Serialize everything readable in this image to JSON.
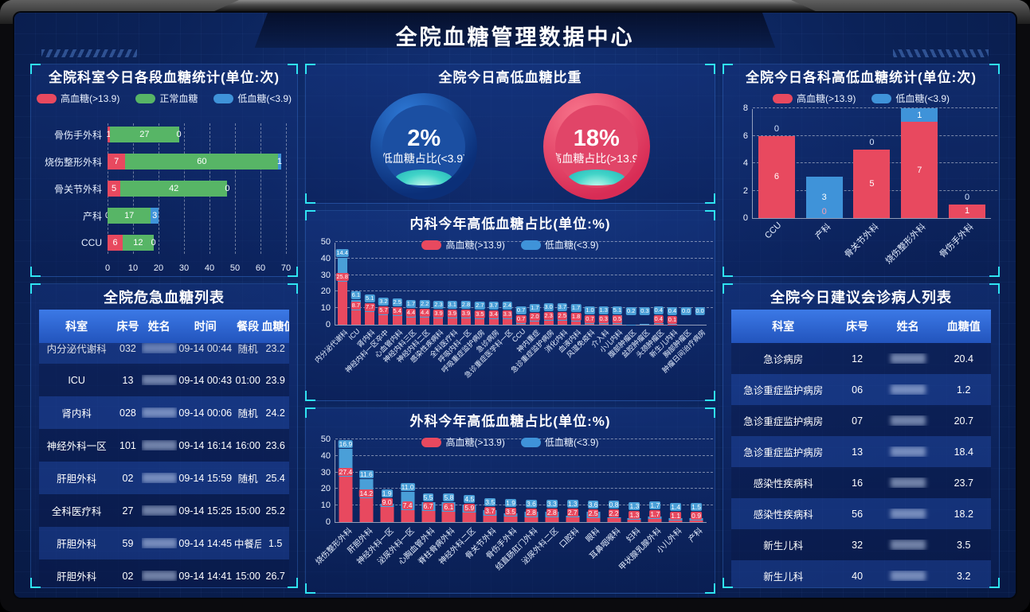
{
  "title": "全院血糖管理数据中心",
  "theme": {
    "background": "#0b2258",
    "panel_border": "#3a78d8",
    "corner_bracket": "#2fe3f2",
    "high_color": "#e8495f",
    "normal_color": "#57b566",
    "low_color": "#3f93d9",
    "table_header_gradient": [
      "#3c79e6",
      "#2254bd"
    ]
  },
  "chart_data": [
    {
      "id": "dept_today",
      "type": "bar",
      "orientation": "horizontal",
      "stacked": true,
      "title": "全院科室今日各段血糖统计(单位:次)",
      "categories": [
        "骨伤手外科",
        "烧伤整形外科",
        "骨关节外科",
        "产科",
        "CCU"
      ],
      "series": [
        {
          "name": "高血糖(>13.9)",
          "color": "#e8495f",
          "values": [
            1,
            7,
            5,
            0,
            6
          ]
        },
        {
          "name": "正常血糖",
          "color": "#57b566",
          "values": [
            27,
            60,
            42,
            17,
            12
          ]
        },
        {
          "name": "低血糖(<3.9)",
          "color": "#3f93d9",
          "values": [
            0,
            1,
            0,
            3,
            0
          ]
        }
      ],
      "xlim": [
        0,
        70
      ],
      "xticks": [
        0,
        10,
        20,
        30,
        40,
        50,
        60,
        70
      ],
      "grid": "dashed-vertical"
    },
    {
      "id": "ratio_today",
      "type": "gauge",
      "title": "全院今日高低血糖比重",
      "gauges": [
        {
          "value": 2,
          "display": "2%",
          "label": "低血糖占比(<3.9)",
          "theme": "blue"
        },
        {
          "value": 18,
          "display": "18%",
          "label": "高血糖占比(>13.9)",
          "theme": "red"
        }
      ]
    },
    {
      "id": "internal",
      "type": "bar",
      "orientation": "vertical",
      "stacked": true,
      "title": "内科今年高低血糖占比(单位:%)",
      "ylim": [
        0,
        50
      ],
      "yticks": [
        0,
        10,
        20,
        30,
        40,
        50
      ],
      "grid": "dashed-horizontal",
      "categories": [
        "内分泌代谢科",
        "ICU",
        "肾内科",
        "神经内科一区卒中",
        "心血管内科",
        "神经内科三区",
        "神经内科二区",
        "感染性疾病科",
        "全科医疗科",
        "呼吸内科一区",
        "呼吸重症监护病房",
        "急诊病房",
        "急诊重症医学科一区",
        "CCU",
        "神内重症",
        "急诊重症监护病房",
        "消化内科",
        "血液内科",
        "风湿免疫科",
        "介入科",
        "小儿内科",
        "腹部肿瘤区",
        "盆腔肿瘤区",
        "头颈肿瘤区",
        "新生儿内科",
        "胸部肿瘤区",
        "肿瘤日间治疗病房"
      ],
      "series": [
        {
          "name": "高血糖(>13.9)",
          "color": "#e8495f",
          "values": [
            25.8,
            8.7,
            7.7,
            5.7,
            5.4,
            4.4,
            4.4,
            3.9,
            3.9,
            3.9,
            3.5,
            3.4,
            3.3,
            0.7,
            2.0,
            2.3,
            2.5,
            1.8,
            0.7,
            0.3,
            0.5,
            0.0,
            0.0,
            0.4,
            0.1,
            0.0,
            0.0
          ]
        },
        {
          "name": "低血糖(<3.9)",
          "color": "#4a9fd8",
          "values": [
            14.4,
            6.1,
            5.1,
            3.2,
            2.5,
            1.7,
            2.2,
            2.3,
            3.1,
            2.8,
            2.7,
            3.7,
            2.4,
            0.7,
            1.7,
            3.0,
            3.7,
            1.7,
            1.0,
            1.3,
            5.1,
            0.2,
            0.3,
            0.4,
            0.4,
            0.0,
            0.0
          ]
        }
      ]
    },
    {
      "id": "surgery",
      "type": "bar",
      "orientation": "vertical",
      "stacked": true,
      "title": "外科今年高低血糖占比(单位:%)",
      "ylim": [
        0,
        50
      ],
      "yticks": [
        0,
        10,
        20,
        30,
        40,
        50
      ],
      "grid": "dashed-horizontal",
      "categories": [
        "烧伤整形外科",
        "肝胆外科",
        "神经外科一区",
        "泌尿外科一区",
        "心胸血管外科",
        "脊柱骨病外科",
        "神经外科二区",
        "骨关节外科",
        "骨伤手外科",
        "结直肠肛门外科",
        "泌尿外科二区",
        "口腔科",
        "眼科",
        "耳鼻咽喉科",
        "妇科",
        "甲状腺乳腺外科",
        "小儿外科",
        "产科"
      ],
      "series": [
        {
          "name": "高血糖(>13.9)",
          "color": "#e8495f",
          "values": [
            27.4,
            14.2,
            9.0,
            7.4,
            6.7,
            6.1,
            5.9,
            3.7,
            3.5,
            2.8,
            2.8,
            2.7,
            2.5,
            2.2,
            1.3,
            1.7,
            1.1,
            0.9
          ]
        },
        {
          "name": "低血糖(<3.9)",
          "color": "#4a9fd8",
          "values": [
            16.9,
            11.6,
            1.9,
            11.0,
            5.5,
            5.8,
            4.5,
            3.5,
            1.9,
            3.6,
            3.3,
            1.3,
            3.6,
            0.8,
            1.3,
            1.7,
            1.4,
            1.5
          ]
        }
      ]
    },
    {
      "id": "dept_highlow",
      "type": "bar",
      "orientation": "vertical",
      "stacked": true,
      "title": "全院今日各科高低血糖统计(单位:次)",
      "ylim": [
        0,
        8
      ],
      "yticks": [
        0,
        2,
        4,
        6,
        8
      ],
      "grid": "dashed-horizontal",
      "categories": [
        "CCU",
        "产科",
        "骨关节外科",
        "烧伤整形外科",
        "骨伤手外科"
      ],
      "series": [
        {
          "name": "高血糖(>13.9)",
          "color": "#e8495f",
          "values": [
            6,
            0,
            5,
            7,
            1
          ]
        },
        {
          "name": "低血糖(<3.9)",
          "color": "#3f93d9",
          "values": [
            0,
            3,
            0,
            1,
            0
          ]
        }
      ]
    }
  ],
  "panels": {
    "critical_list": {
      "title": "全院危急血糖列表",
      "headers": [
        "科室",
        "床号",
        "姓名",
        "时间",
        "餐段",
        "血糖值"
      ],
      "names_blurred": true,
      "rows": [
        {
          "dept": "内分泌代谢科",
          "bed": "032",
          "time": "09-14 00:44",
          "meal": "随机",
          "value": "23.2",
          "clipped": true
        },
        {
          "dept": "ICU",
          "bed": "13",
          "time": "09-14 00:43",
          "meal": "01:00",
          "value": "23.9"
        },
        {
          "dept": "肾内科",
          "bed": "028",
          "time": "09-14 00:06",
          "meal": "随机",
          "value": "24.2"
        },
        {
          "dept": "神经外科一区",
          "bed": "101",
          "time": "09-14 16:14",
          "meal": "16:00",
          "value": "23.6"
        },
        {
          "dept": "肝胆外科",
          "bed": "02",
          "time": "09-14 15:59",
          "meal": "随机",
          "value": "25.4"
        },
        {
          "dept": "全科医疗科",
          "bed": "27",
          "time": "09-14 15:25",
          "meal": "15:00",
          "value": "25.2"
        },
        {
          "dept": "肝胆外科",
          "bed": "59",
          "time": "09-14 14:45",
          "meal": "中餐后",
          "value": "1.5"
        },
        {
          "dept": "肝胆外科",
          "bed": "02",
          "time": "09-14 14:41",
          "meal": "15:00",
          "value": "26.7"
        }
      ]
    },
    "consult_list": {
      "title": "全院今日建议会诊病人列表",
      "headers": [
        "科室",
        "床号",
        "姓名",
        "血糖值"
      ],
      "names_blurred": true,
      "rows": [
        {
          "dept": "急诊病房",
          "bed": "12",
          "value": "20.4"
        },
        {
          "dept": "急诊重症监护病房",
          "bed": "06",
          "value": "1.2"
        },
        {
          "dept": "急诊重症监护病房",
          "bed": "07",
          "value": "20.7"
        },
        {
          "dept": "急诊重症监护病房",
          "bed": "13",
          "value": "18.4"
        },
        {
          "dept": "感染性疾病科",
          "bed": "16",
          "value": "23.7"
        },
        {
          "dept": "感染性疾病科",
          "bed": "56",
          "value": "18.2"
        },
        {
          "dept": "新生儿科",
          "bed": "32",
          "value": "3.5"
        },
        {
          "dept": "新生儿科",
          "bed": "40",
          "value": "3.2"
        }
      ]
    }
  }
}
